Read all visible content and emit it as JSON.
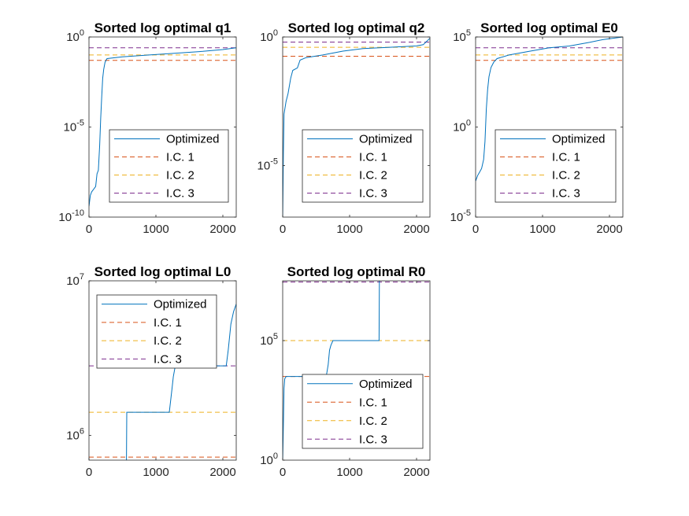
{
  "colors": {
    "optimized": "#0072BD",
    "ic1": "#D95319",
    "ic2": "#EDB120",
    "ic3": "#7E2F8E",
    "axis": "#262626",
    "background": "#ffffff"
  },
  "chart_data": [
    {
      "type": "line",
      "title": "Sorted log optimal q1",
      "xlabel": "",
      "ylabel": "",
      "yscale": "log",
      "xlim": [
        0,
        2200
      ],
      "xticks": [
        0,
        1000,
        2000
      ],
      "ylim_exp": [
        -10,
        0
      ],
      "yticks": [
        {
          "base": "10",
          "exp": "0",
          "value": 0
        },
        {
          "base": "10",
          "exp": "-5",
          "value": -5
        },
        {
          "base": "10",
          "exp": "-10",
          "value": -10
        }
      ],
      "legend": {
        "position": "bottom-right",
        "entries": [
          "Optimized",
          "I.C. 1",
          "I.C. 2",
          "I.C. 3"
        ]
      },
      "reference_lines": [
        {
          "name": "I.C. 1",
          "log10_y": -1.3
        },
        {
          "name": "I.C. 2",
          "log10_y": -1.0
        },
        {
          "name": "I.C. 3",
          "log10_y": -0.6
        }
      ],
      "series": [
        {
          "name": "Optimized",
          "points": [
            [
              0,
              -9.4
            ],
            [
              20,
              -8.8
            ],
            [
              40,
              -8.6
            ],
            [
              60,
              -8.5
            ],
            [
              100,
              -8.3
            ],
            [
              120,
              -7.6
            ],
            [
              140,
              -7.4
            ],
            [
              160,
              -6.0
            ],
            [
              175,
              -4.5
            ],
            [
              190,
              -3.3
            ],
            [
              205,
              -2.3
            ],
            [
              220,
              -1.8
            ],
            [
              240,
              -1.4
            ],
            [
              270,
              -1.2
            ],
            [
              500,
              -1.1
            ],
            [
              900,
              -1.0
            ],
            [
              1300,
              -0.9
            ],
            [
              1700,
              -0.8
            ],
            [
              2000,
              -0.7
            ],
            [
              2200,
              -0.6
            ]
          ]
        }
      ]
    },
    {
      "type": "line",
      "title": "Sorted log optimal q2",
      "xlabel": "",
      "ylabel": "",
      "yscale": "log",
      "xlim": [
        0,
        2200
      ],
      "xticks": [
        0,
        1000,
        2000
      ],
      "ylim_exp": [
        -7,
        0
      ],
      "yticks": [
        {
          "base": "10",
          "exp": "0",
          "value": 0
        },
        {
          "base": "10",
          "exp": "-5",
          "value": -5
        }
      ],
      "legend": {
        "position": "bottom-right",
        "entries": [
          "Optimized",
          "I.C. 1",
          "I.C. 2",
          "I.C. 3"
        ]
      },
      "reference_lines": [
        {
          "name": "I.C. 1",
          "log10_y": -0.75
        },
        {
          "name": "I.C. 2",
          "log10_y": -0.4
        },
        {
          "name": "I.C. 3",
          "log10_y": -0.2
        }
      ],
      "series": [
        {
          "name": "Optimized",
          "points": [
            [
              0,
              -7.0
            ],
            [
              10,
              -4.5
            ],
            [
              20,
              -3.0
            ],
            [
              50,
              -2.5
            ],
            [
              80,
              -2.2
            ],
            [
              120,
              -1.6
            ],
            [
              150,
              -1.3
            ],
            [
              220,
              -1.2
            ],
            [
              260,
              -0.9
            ],
            [
              350,
              -0.8
            ],
            [
              600,
              -0.7
            ],
            [
              900,
              -0.55
            ],
            [
              1200,
              -0.45
            ],
            [
              1600,
              -0.4
            ],
            [
              2000,
              -0.35
            ],
            [
              2100,
              -0.3
            ],
            [
              2200,
              -0.05
            ]
          ]
        }
      ]
    },
    {
      "type": "line",
      "title": "Sorted log optimal E0",
      "xlabel": "",
      "ylabel": "",
      "yscale": "log",
      "xlim": [
        0,
        2200
      ],
      "xticks": [
        0,
        1000,
        2000
      ],
      "ylim_exp": [
        -5,
        5
      ],
      "yticks": [
        {
          "base": "10",
          "exp": "5",
          "value": 5
        },
        {
          "base": "10",
          "exp": "0",
          "value": 0
        },
        {
          "base": "10",
          "exp": "-5",
          "value": -5
        }
      ],
      "legend": {
        "position": "bottom-right",
        "entries": [
          "Optimized",
          "I.C. 1",
          "I.C. 2",
          "I.C. 3"
        ]
      },
      "reference_lines": [
        {
          "name": "I.C. 1",
          "log10_y": 3.7
        },
        {
          "name": "I.C. 2",
          "log10_y": 4.0
        },
        {
          "name": "I.C. 3",
          "log10_y": 4.4
        }
      ],
      "series": [
        {
          "name": "Optimized",
          "points": [
            [
              0,
              -3.0
            ],
            [
              30,
              -2.7
            ],
            [
              60,
              -2.5
            ],
            [
              90,
              -2.3
            ],
            [
              120,
              -1.8
            ],
            [
              140,
              -0.8
            ],
            [
              160,
              1.0
            ],
            [
              180,
              2.1
            ],
            [
              200,
              2.8
            ],
            [
              230,
              3.3
            ],
            [
              270,
              3.6
            ],
            [
              320,
              3.8
            ],
            [
              500,
              4.0
            ],
            [
              800,
              4.2
            ],
            [
              1100,
              4.4
            ],
            [
              1400,
              4.5
            ],
            [
              1700,
              4.7
            ],
            [
              1900,
              4.85
            ],
            [
              2200,
              5.0
            ]
          ]
        }
      ]
    },
    {
      "type": "line",
      "title": "Sorted log optimal L0",
      "xlabel": "",
      "ylabel": "",
      "yscale": "log",
      "xlim": [
        0,
        2200
      ],
      "xticks": [
        0,
        1000,
        2000
      ],
      "ylim_exp": [
        5.84,
        7.0
      ],
      "yticks": [
        {
          "base": "10",
          "exp": "7",
          "value": 7
        },
        {
          "base": "10",
          "exp": "6",
          "value": 6
        }
      ],
      "legend": {
        "position": "top-right",
        "entries": [
          "Optimized",
          "I.C. 1",
          "I.C. 2",
          "I.C. 3"
        ]
      },
      "reference_lines": [
        {
          "name": "I.C. 1",
          "log10_y": 5.86
        },
        {
          "name": "I.C. 2",
          "log10_y": 6.15
        },
        {
          "name": "I.C. 3",
          "log10_y": 6.45
        }
      ],
      "series": [
        {
          "name": "Optimized",
          "points": [
            [
              560,
              5.84
            ],
            [
              565,
              6.15
            ],
            [
              1200,
              6.15
            ],
            [
              1240,
              6.3
            ],
            [
              1260,
              6.38
            ],
            [
              1290,
              6.45
            ],
            [
              2050,
              6.45
            ],
            [
              2080,
              6.55
            ],
            [
              2120,
              6.72
            ],
            [
              2160,
              6.8
            ],
            [
              2200,
              6.85
            ]
          ]
        }
      ]
    },
    {
      "type": "line",
      "title": "Sorted log optimal R0",
      "xlabel": "",
      "ylabel": "",
      "yscale": "log",
      "xlim": [
        0,
        2200
      ],
      "xticks": [
        0,
        1000,
        2000
      ],
      "ylim_exp": [
        0,
        7.5
      ],
      "yticks": [
        {
          "base": "10",
          "exp": "5",
          "value": 5
        },
        {
          "base": "10",
          "exp": "0",
          "value": 0
        }
      ],
      "legend": {
        "position": "bottom-right",
        "entries": [
          "Optimized",
          "I.C. 1",
          "I.C. 2",
          "I.C. 3"
        ]
      },
      "reference_lines": [
        {
          "name": "I.C. 1",
          "log10_y": 3.5
        },
        {
          "name": "I.C. 2",
          "log10_y": 5.0
        },
        {
          "name": "I.C. 3",
          "log10_y": 7.45
        }
      ],
      "series": [
        {
          "name": "Optimized",
          "points": [
            [
              0,
              0.0
            ],
            [
              10,
              1.5
            ],
            [
              20,
              3.0
            ],
            [
              30,
              3.4
            ],
            [
              50,
              3.5
            ],
            [
              650,
              3.5
            ],
            [
              680,
              4.0
            ],
            [
              700,
              4.6
            ],
            [
              720,
              4.8
            ],
            [
              750,
              5.0
            ],
            [
              1440,
              5.0
            ],
            [
              1445,
              7.5
            ]
          ]
        }
      ]
    }
  ]
}
